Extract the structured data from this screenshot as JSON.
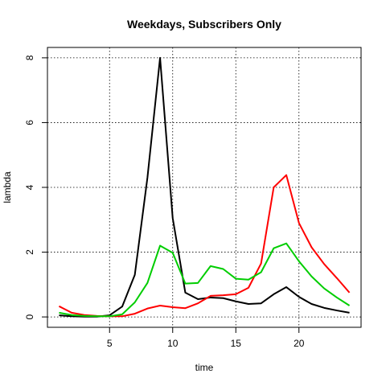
{
  "chart_data": {
    "type": "line",
    "title": "Weekdays, Subscribers Only",
    "xlabel": "time",
    "ylabel": "lambda",
    "xlim": [
      1,
      24
    ],
    "ylim": [
      0,
      8
    ],
    "x_ticks": [
      5,
      10,
      15,
      20
    ],
    "y_ticks": [
      0,
      2,
      4,
      6,
      8
    ],
    "grid": true,
    "x": [
      1,
      2,
      3,
      4,
      5,
      6,
      7,
      8,
      9,
      10,
      11,
      12,
      13,
      14,
      15,
      16,
      17,
      18,
      19,
      20,
      21,
      22,
      23,
      24
    ],
    "series": [
      {
        "color": "#000000",
        "values": [
          0.05,
          0.02,
          0.01,
          0.01,
          0.05,
          0.32,
          1.3,
          4.3,
          8.0,
          3.05,
          0.75,
          0.55,
          0.6,
          0.58,
          0.48,
          0.4,
          0.42,
          0.7,
          0.92,
          0.62,
          0.4,
          0.28,
          0.2,
          0.13
        ]
      },
      {
        "color": "#ff0000",
        "values": [
          0.33,
          0.13,
          0.06,
          0.03,
          0.02,
          0.02,
          0.1,
          0.26,
          0.35,
          0.3,
          0.27,
          0.42,
          0.65,
          0.67,
          0.7,
          0.9,
          1.65,
          4.0,
          4.38,
          2.9,
          2.15,
          1.63,
          1.2,
          0.75
        ]
      },
      {
        "color": "#00cd00",
        "values": [
          0.13,
          0.06,
          0.03,
          0.02,
          0.02,
          0.08,
          0.45,
          1.05,
          2.2,
          1.98,
          1.03,
          1.05,
          1.57,
          1.48,
          1.18,
          1.15,
          1.38,
          2.12,
          2.27,
          1.72,
          1.25,
          0.88,
          0.6,
          0.35
        ]
      }
    ]
  }
}
